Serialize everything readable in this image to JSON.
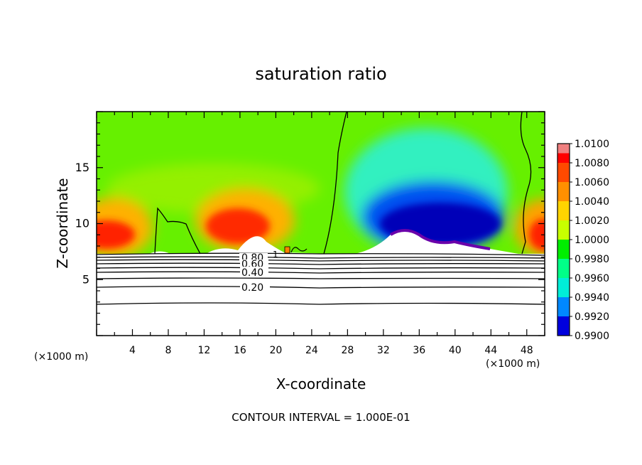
{
  "chart_data": {
    "type": "heatmap",
    "title": "saturation ratio",
    "xlabel": "X-coordinate",
    "ylabel": "Z-coordinate",
    "x_unit_left": "(×1000 m)",
    "x_unit_right": "(×1000 m)",
    "footer": "CONTOUR INTERVAL = 1.000E-01",
    "xlim": [
      0,
      50
    ],
    "ylim": [
      0,
      20
    ],
    "x_ticks": [
      4,
      8,
      12,
      16,
      20,
      24,
      28,
      32,
      36,
      40,
      44,
      48
    ],
    "y_ticks": [
      5,
      10,
      15
    ],
    "grid": false,
    "colorbar": {
      "placement": "right",
      "labels": [
        "1.0100",
        "1.0080",
        "1.0060",
        "1.0040",
        "1.0020",
        "1.0000",
        "0.9980",
        "0.9960",
        "0.9940",
        "0.9920",
        "0.9900"
      ],
      "colors": [
        "#ff0000",
        "#ff4a00",
        "#ff9000",
        "#ffd400",
        "#c8ff00",
        "#00ee00",
        "#00ff88",
        "#00eed8",
        "#0088ff",
        "#0000dd",
        "#6a00aa"
      ],
      "top_color": "#f08080"
    },
    "contour_labels": [
      "0.80",
      "0.60",
      "0.40",
      "0.20",
      "1"
    ],
    "regions": [
      {
        "name": "left warm lobe",
        "x": [
          0,
          7
        ],
        "z": [
          7.5,
          13
        ],
        "value_range": [
          1.0,
          1.008
        ]
      },
      {
        "name": "central warm lobe",
        "x": [
          11,
          21
        ],
        "z": [
          7.5,
          13
        ],
        "value_range": [
          1.0,
          1.009
        ]
      },
      {
        "name": "subsaturated core",
        "x": [
          28,
          46
        ],
        "z": [
          7.5,
          15
        ],
        "value_range": [
          0.99,
          1.0
        ]
      },
      {
        "name": "right warm lobe",
        "x": [
          47,
          50
        ],
        "z": [
          7.5,
          11
        ],
        "value_range": [
          1.0,
          1.007
        ]
      },
      {
        "name": "background",
        "x": [
          0,
          50
        ],
        "z": [
          12,
          20
        ],
        "value_range": [
          1.0,
          1.002
        ]
      }
    ],
    "lower_contours": [
      {
        "label": "0.20",
        "z": 4.4
      },
      {
        "label": "0.40",
        "z": 5.9
      },
      {
        "label": "0.60",
        "z": 6.5
      },
      {
        "label": "0.80",
        "z": 7.0
      }
    ]
  }
}
